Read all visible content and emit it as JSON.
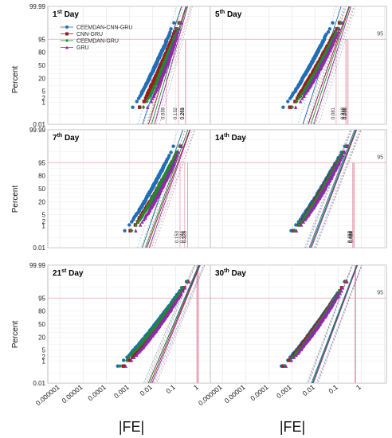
{
  "figure": {
    "ylabel": "Percent",
    "xlabel": "|FE|"
  },
  "colors": {
    "CEEMDAN-CNN-GRU": "#1f6fb5",
    "CNN-GRU": "#9b1b1f",
    "CEEMDAN-GRU": "#1f8a2e",
    "GRU": "#8e2aa8",
    "refline": "#e8a0b4"
  },
  "chart_data": [
    {
      "type": "scatter",
      "panel": 0,
      "title": "1",
      "title_sup": "st",
      "title_rest": " Day",
      "legend": [
        "CEEMDAN-CNN-GRU",
        "CNN-GRU",
        "CEEMDAN-GRU",
        "GRU"
      ],
      "legend_position": "top-left",
      "y_ticks": [
        "0.01",
        "1",
        "2",
        "5",
        "20",
        "50",
        "80",
        "95",
        "99.99"
      ],
      "x_scale": "log",
      "y_scale": "normal-probability",
      "p95_label": "95",
      "series": [
        {
          "name": "CEEMDAN-CNN-GRU",
          "x0": 0.00035,
          "x1": 0.16,
          "anchor": 0.005
        },
        {
          "name": "CNN-GRU",
          "x0": 0.00075,
          "x1": 0.25,
          "anchor": 0.009
        },
        {
          "name": "CEEMDAN-GRU",
          "x0": 0.0012,
          "x1": 0.27,
          "anchor": 0.012
        },
        {
          "name": "GRU",
          "x0": 0.002,
          "x1": 0.3,
          "anchor": 0.016
        }
      ],
      "vlines": [
        {
          "x": 0.039,
          "label": "0.039"
        },
        {
          "x": 0.132,
          "label": "0.132"
        },
        {
          "x": 0.268,
          "label": "0.268"
        },
        {
          "x": 0.261,
          "label": "0.261"
        }
      ]
    },
    {
      "type": "scatter",
      "panel": 1,
      "title": "5",
      "title_sup": "th",
      "title_rest": " Day",
      "y_ticks": [],
      "x_scale": "log",
      "y_scale": "normal-probability",
      "p95_label": "95",
      "series": [
        {
          "name": "CEEMDAN-CNN-GRU",
          "x0": 8e-05,
          "x1": 0.12,
          "anchor": 0.004
        },
        {
          "name": "CNN-GRU",
          "x0": 0.00015,
          "x1": 0.26,
          "anchor": 0.007
        },
        {
          "name": "CEEMDAN-GRU",
          "x0": 0.0002,
          "x1": 0.28,
          "anchor": 0.009
        },
        {
          "name": "GRU",
          "x0": 0.0003,
          "x1": 0.32,
          "anchor": 0.012
        }
      ],
      "vlines": [
        {
          "x": 0.081,
          "label": "0.081"
        },
        {
          "x": 0.21,
          "label": "0.210"
        },
        {
          "x": 0.239,
          "label": "0.239"
        },
        {
          "x": 0.266,
          "label": "0.266"
        }
      ]
    },
    {
      "type": "scatter",
      "panel": 2,
      "title": "7",
      "title_sup": "th",
      "title_rest": " Day",
      "y_ticks": [
        "0.01",
        "1",
        "2",
        "5",
        "20",
        "50",
        "80",
        "95",
        "99.99"
      ],
      "x_scale": "log",
      "y_scale": "normal-probability",
      "p95_label": "95",
      "series": [
        {
          "name": "CEEMDAN-CNN-GRU",
          "x0": 0.00012,
          "x1": 0.18,
          "anchor": 0.005
        },
        {
          "name": "CNN-GRU",
          "x0": 0.0002,
          "x1": 0.36,
          "anchor": 0.008
        },
        {
          "name": "CEEMDAN-GRU",
          "x0": 0.00025,
          "x1": 0.3,
          "anchor": 0.007
        },
        {
          "name": "GRU",
          "x0": 0.0004,
          "x1": 0.38,
          "anchor": 0.01
        }
      ],
      "vlines": [
        {
          "x": 0.153,
          "label": "0.153"
        },
        {
          "x": 0.244,
          "label": "0.244"
        },
        {
          "x": 0.328,
          "label": "0.328"
        },
        {
          "x": 0.325,
          "label": "0.325"
        }
      ]
    },
    {
      "type": "scatter",
      "panel": 3,
      "title": "14",
      "title_sup": "th",
      "title_rest": " Day",
      "y_ticks": [],
      "x_scale": "log",
      "y_scale": "normal-probability",
      "p95_label": "95",
      "series": [
        {
          "name": "CEEMDAN-CNN-GRU",
          "x0": 0.00015,
          "x1": 0.45,
          "anchor": 0.008
        },
        {
          "name": "CNN-GRU",
          "x0": 0.0002,
          "x1": 0.52,
          "anchor": 0.009
        },
        {
          "name": "CEEMDAN-GRU",
          "x0": 0.00022,
          "x1": 0.5,
          "anchor": 0.009
        },
        {
          "name": "GRU",
          "x0": 0.00028,
          "x1": 0.55,
          "anchor": 0.01
        }
      ],
      "vlines": [
        {
          "x": 0.413,
          "label": "0.413"
        },
        {
          "x": 0.458,
          "label": "0.458"
        },
        {
          "x": 0.487,
          "label": "0.487"
        },
        {
          "x": 0.494,
          "label": "0.494"
        }
      ]
    },
    {
      "type": "scatter",
      "panel": 4,
      "title": "21",
      "title_sup": "st",
      "title_rest": " Day",
      "y_ticks": [
        "0.01",
        "1",
        "2",
        "5",
        "20",
        "50",
        "80",
        "95",
        "99.99"
      ],
      "x_ticks": [
        "0.000001",
        "0.00001",
        "0.0001",
        "0.001",
        "0.01",
        "0.1",
        "1"
      ],
      "x_scale": "log",
      "y_scale": "normal-probability",
      "p95_label": "95",
      "series": [
        {
          "name": "CEEMDAN-CNN-GRU",
          "x0": 3e-05,
          "x1": 0.85,
          "anchor": 0.01
        },
        {
          "name": "CNN-GRU",
          "x0": 6e-05,
          "x1": 0.95,
          "anchor": 0.012
        },
        {
          "name": "CEEMDAN-GRU",
          "x0": 4e-05,
          "x1": 0.9,
          "anchor": 0.01
        },
        {
          "name": "GRU",
          "x0": 8e-05,
          "x1": 1.0,
          "anchor": 0.014
        }
      ],
      "vlines": []
    },
    {
      "type": "scatter",
      "panel": 5,
      "title": "30",
      "title_sup": "th",
      "title_rest": " Day",
      "y_ticks": [],
      "x_ticks": [
        "0.000001",
        "0.00001",
        "0.0001",
        "0.001",
        "0.01",
        "0.1",
        "1"
      ],
      "x_scale": "log",
      "y_scale": "normal-probability",
      "p95_label": "95",
      "series": [
        {
          "name": "CEEMDAN-CNN-GRU",
          "x0": 4e-05,
          "x1": 0.55,
          "anchor": 0.01
        },
        {
          "name": "CNN-GRU",
          "x0": 5e-05,
          "x1": 0.58,
          "anchor": 0.011
        },
        {
          "name": "CEEMDAN-GRU",
          "x0": 6e-05,
          "x1": 0.56,
          "anchor": 0.011
        },
        {
          "name": "GRU",
          "x0": 7e-05,
          "x1": 0.6,
          "anchor": 0.012
        }
      ],
      "vlines": []
    }
  ]
}
